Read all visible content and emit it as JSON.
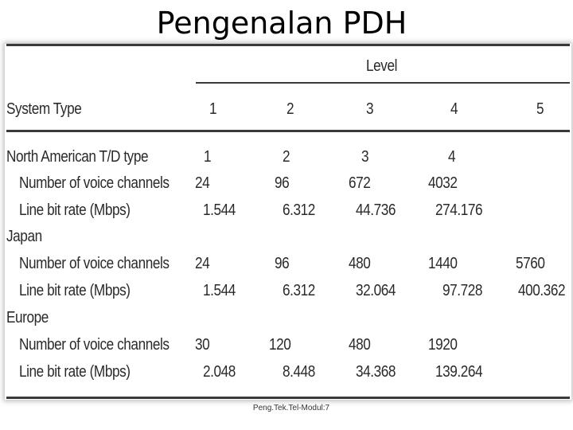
{
  "title": "Pengenalan PDH",
  "table": {
    "level_header": "Level",
    "system_type_header": "System Type",
    "levels": [
      "1",
      "2",
      "3",
      "4",
      "5"
    ],
    "north_american": {
      "label": "North American T/D type",
      "levels": [
        "1",
        "2",
        "3",
        "4"
      ],
      "channels_label": "Number of voice channels",
      "channels": [
        "24",
        "96",
        "672",
        "4032"
      ],
      "rate_label": "Line bit rate (Mbps)",
      "rates": [
        "1.544",
        "6.312",
        "44.736",
        "274.176"
      ]
    },
    "japan": {
      "label": "Japan",
      "channels_label": "Number of voice channels",
      "channels": [
        "24",
        "96",
        "480",
        "1440",
        "5760"
      ],
      "rate_label": "Line bit rate (Mbps)",
      "rates": [
        "1.544",
        "6.312",
        "32.064",
        "97.728",
        "400.362"
      ]
    },
    "europe": {
      "label": "Europe",
      "channels_label": "Number of voice channels",
      "channels": [
        "30",
        "120",
        "480",
        "1920"
      ],
      "rate_label": "Line bit rate (Mbps)",
      "rates": [
        "2.048",
        "8.448",
        "34.368",
        "139.264"
      ]
    }
  },
  "footer": "Peng.Tek.Tel-Modul:7"
}
